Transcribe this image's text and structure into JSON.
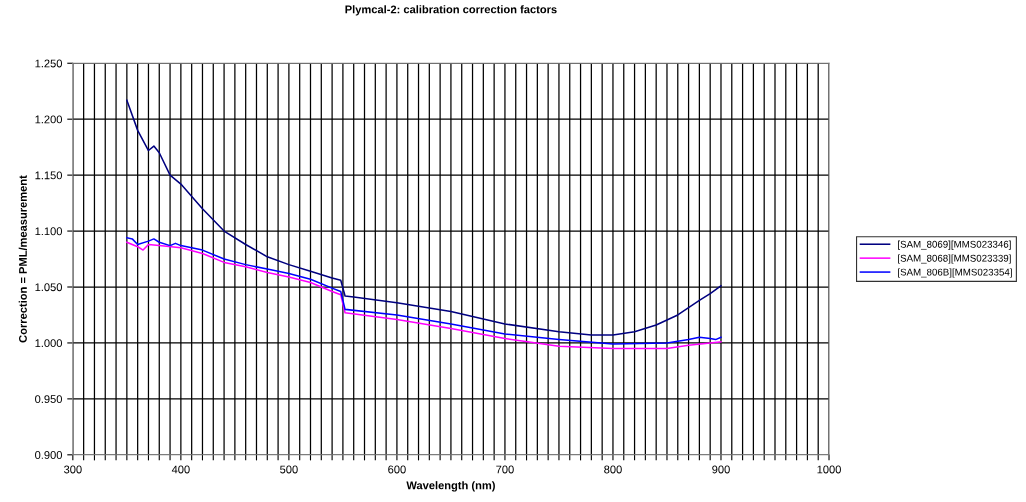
{
  "chart_data": {
    "type": "line",
    "title": "Plymcal-2: calibration correction factors",
    "xlabel": "Wavelength (nm)",
    "ylabel": "Correction = PML/measurement",
    "series": [
      {
        "name": "[SAM_8069][MMS023346]",
        "color": "#000080",
        "x": [
          350,
          360,
          370,
          375,
          380,
          390,
          400,
          420,
          440,
          460,
          480,
          500,
          520,
          540,
          548,
          552,
          560,
          600,
          650,
          700,
          750,
          780,
          800,
          820,
          840,
          860,
          880,
          890,
          900
        ],
        "values": [
          1.217,
          1.19,
          1.172,
          1.176,
          1.17,
          1.15,
          1.142,
          1.12,
          1.1,
          1.088,
          1.077,
          1.07,
          1.064,
          1.058,
          1.056,
          1.042,
          1.041,
          1.036,
          1.028,
          1.017,
          1.01,
          1.007,
          1.007,
          1.01,
          1.016,
          1.025,
          1.038,
          1.044,
          1.051
        ]
      },
      {
        "name": "[SAM_8068][MMS023339]",
        "color": "#ff00ff",
        "x": [
          350,
          360,
          365,
          370,
          380,
          400,
          420,
          440,
          460,
          480,
          500,
          520,
          540,
          548,
          552,
          600,
          650,
          700,
          750,
          800,
          850,
          870,
          890,
          900
        ],
        "values": [
          1.09,
          1.086,
          1.083,
          1.088,
          1.087,
          1.085,
          1.08,
          1.072,
          1.068,
          1.063,
          1.059,
          1.054,
          1.046,
          1.043,
          1.027,
          1.021,
          1.013,
          1.004,
          0.997,
          0.995,
          0.995,
          0.998,
          1.0,
          1.001
        ]
      },
      {
        "name": "[SAM_806B][MMS023354]",
        "color": "#0000ff",
        "x": [
          350,
          355,
          360,
          370,
          375,
          380,
          390,
          395,
          400,
          420,
          440,
          460,
          480,
          500,
          520,
          540,
          548,
          552,
          600,
          650,
          700,
          750,
          800,
          850,
          870,
          880,
          890,
          895,
          900
        ],
        "values": [
          1.094,
          1.093,
          1.088,
          1.091,
          1.093,
          1.09,
          1.087,
          1.089,
          1.087,
          1.083,
          1.075,
          1.07,
          1.066,
          1.062,
          1.057,
          1.049,
          1.046,
          1.03,
          1.025,
          1.017,
          1.008,
          1.003,
          0.999,
          1.0,
          1.003,
          1.005,
          1.004,
          1.003,
          1.005
        ]
      }
    ],
    "xlim": [
      300,
      1000
    ],
    "xticks": [
      300,
      {
        "value": 310,
        "label": null
      },
      {
        "value": 320,
        "label": null
      },
      {
        "value": 330,
        "label": null
      },
      {
        "value": 340,
        "label": null
      },
      {
        "value": 350,
        "label": null
      },
      {
        "value": 360,
        "label": null
      },
      {
        "value": 370,
        "label": null
      },
      {
        "value": 380,
        "label": null
      },
      {
        "value": 390,
        "label": null
      },
      400,
      {
        "value": 410,
        "label": null
      },
      {
        "value": 420,
        "label": null
      },
      {
        "value": 430,
        "label": null
      },
      {
        "value": 440,
        "label": null
      },
      {
        "value": 450,
        "label": null
      },
      {
        "value": 460,
        "label": null
      },
      {
        "value": 470,
        "label": null
      },
      {
        "value": 480,
        "label": null
      },
      {
        "value": 490,
        "label": null
      },
      500,
      {
        "value": 510,
        "label": null
      },
      {
        "value": 520,
        "label": null
      },
      {
        "value": 530,
        "label": null
      },
      {
        "value": 540,
        "label": null
      },
      {
        "value": 550,
        "label": null
      },
      {
        "value": 560,
        "label": null
      },
      {
        "value": 570,
        "label": null
      },
      {
        "value": 580,
        "label": null
      },
      {
        "value": 590,
        "label": null
      },
      600,
      {
        "value": 610,
        "label": null
      },
      {
        "value": 620,
        "label": null
      },
      {
        "value": 630,
        "label": null
      },
      {
        "value": 640,
        "label": null
      },
      {
        "value": 650,
        "label": null
      },
      {
        "value": 660,
        "label": null
      },
      {
        "value": 670,
        "label": null
      },
      {
        "value": 680,
        "label": null
      },
      {
        "value": 690,
        "label": null
      },
      700,
      {
        "value": 710,
        "label": null
      },
      {
        "value": 720,
        "label": null
      },
      {
        "value": 730,
        "label": null
      },
      {
        "value": 740,
        "label": null
      },
      {
        "value": 750,
        "label": null
      },
      {
        "value": 760,
        "label": null
      },
      {
        "value": 770,
        "label": null
      },
      {
        "value": 780,
        "label": null
      },
      {
        "value": 790,
        "label": null
      },
      800,
      {
        "value": 810,
        "label": null
      },
      {
        "value": 820,
        "label": null
      },
      {
        "value": 830,
        "label": null
      },
      {
        "value": 840,
        "label": null
      },
      {
        "value": 850,
        "label": null
      },
      {
        "value": 860,
        "label": null
      },
      {
        "value": 870,
        "label": null
      },
      {
        "value": 880,
        "label": null
      },
      {
        "value": 890,
        "label": null
      },
      900,
      {
        "value": 910,
        "label": null
      },
      {
        "value": 920,
        "label": null
      },
      {
        "value": 930,
        "label": null
      },
      {
        "value": 940,
        "label": null
      },
      {
        "value": 950,
        "label": null
      },
      {
        "value": 960,
        "label": null
      },
      {
        "value": 970,
        "label": null
      },
      {
        "value": 980,
        "label": null
      },
      {
        "value": 990,
        "label": null
      },
      1000
    ],
    "ylim": [
      0.9,
      1.25
    ],
    "yticks": [
      {
        "value": 0.9,
        "label": "0.900"
      },
      {
        "value": 0.95,
        "label": "0.950"
      },
      {
        "value": 1.0,
        "label": "1.000"
      },
      {
        "value": 1.05,
        "label": "1.050"
      },
      {
        "value": 1.1,
        "label": "1.100"
      },
      {
        "value": 1.15,
        "label": "1.150"
      },
      {
        "value": 1.2,
        "label": "1.200"
      },
      {
        "value": 1.25,
        "label": "1.250"
      }
    ],
    "grid": true,
    "legend": "right",
    "marker": "none",
    "line_style": "solid"
  }
}
